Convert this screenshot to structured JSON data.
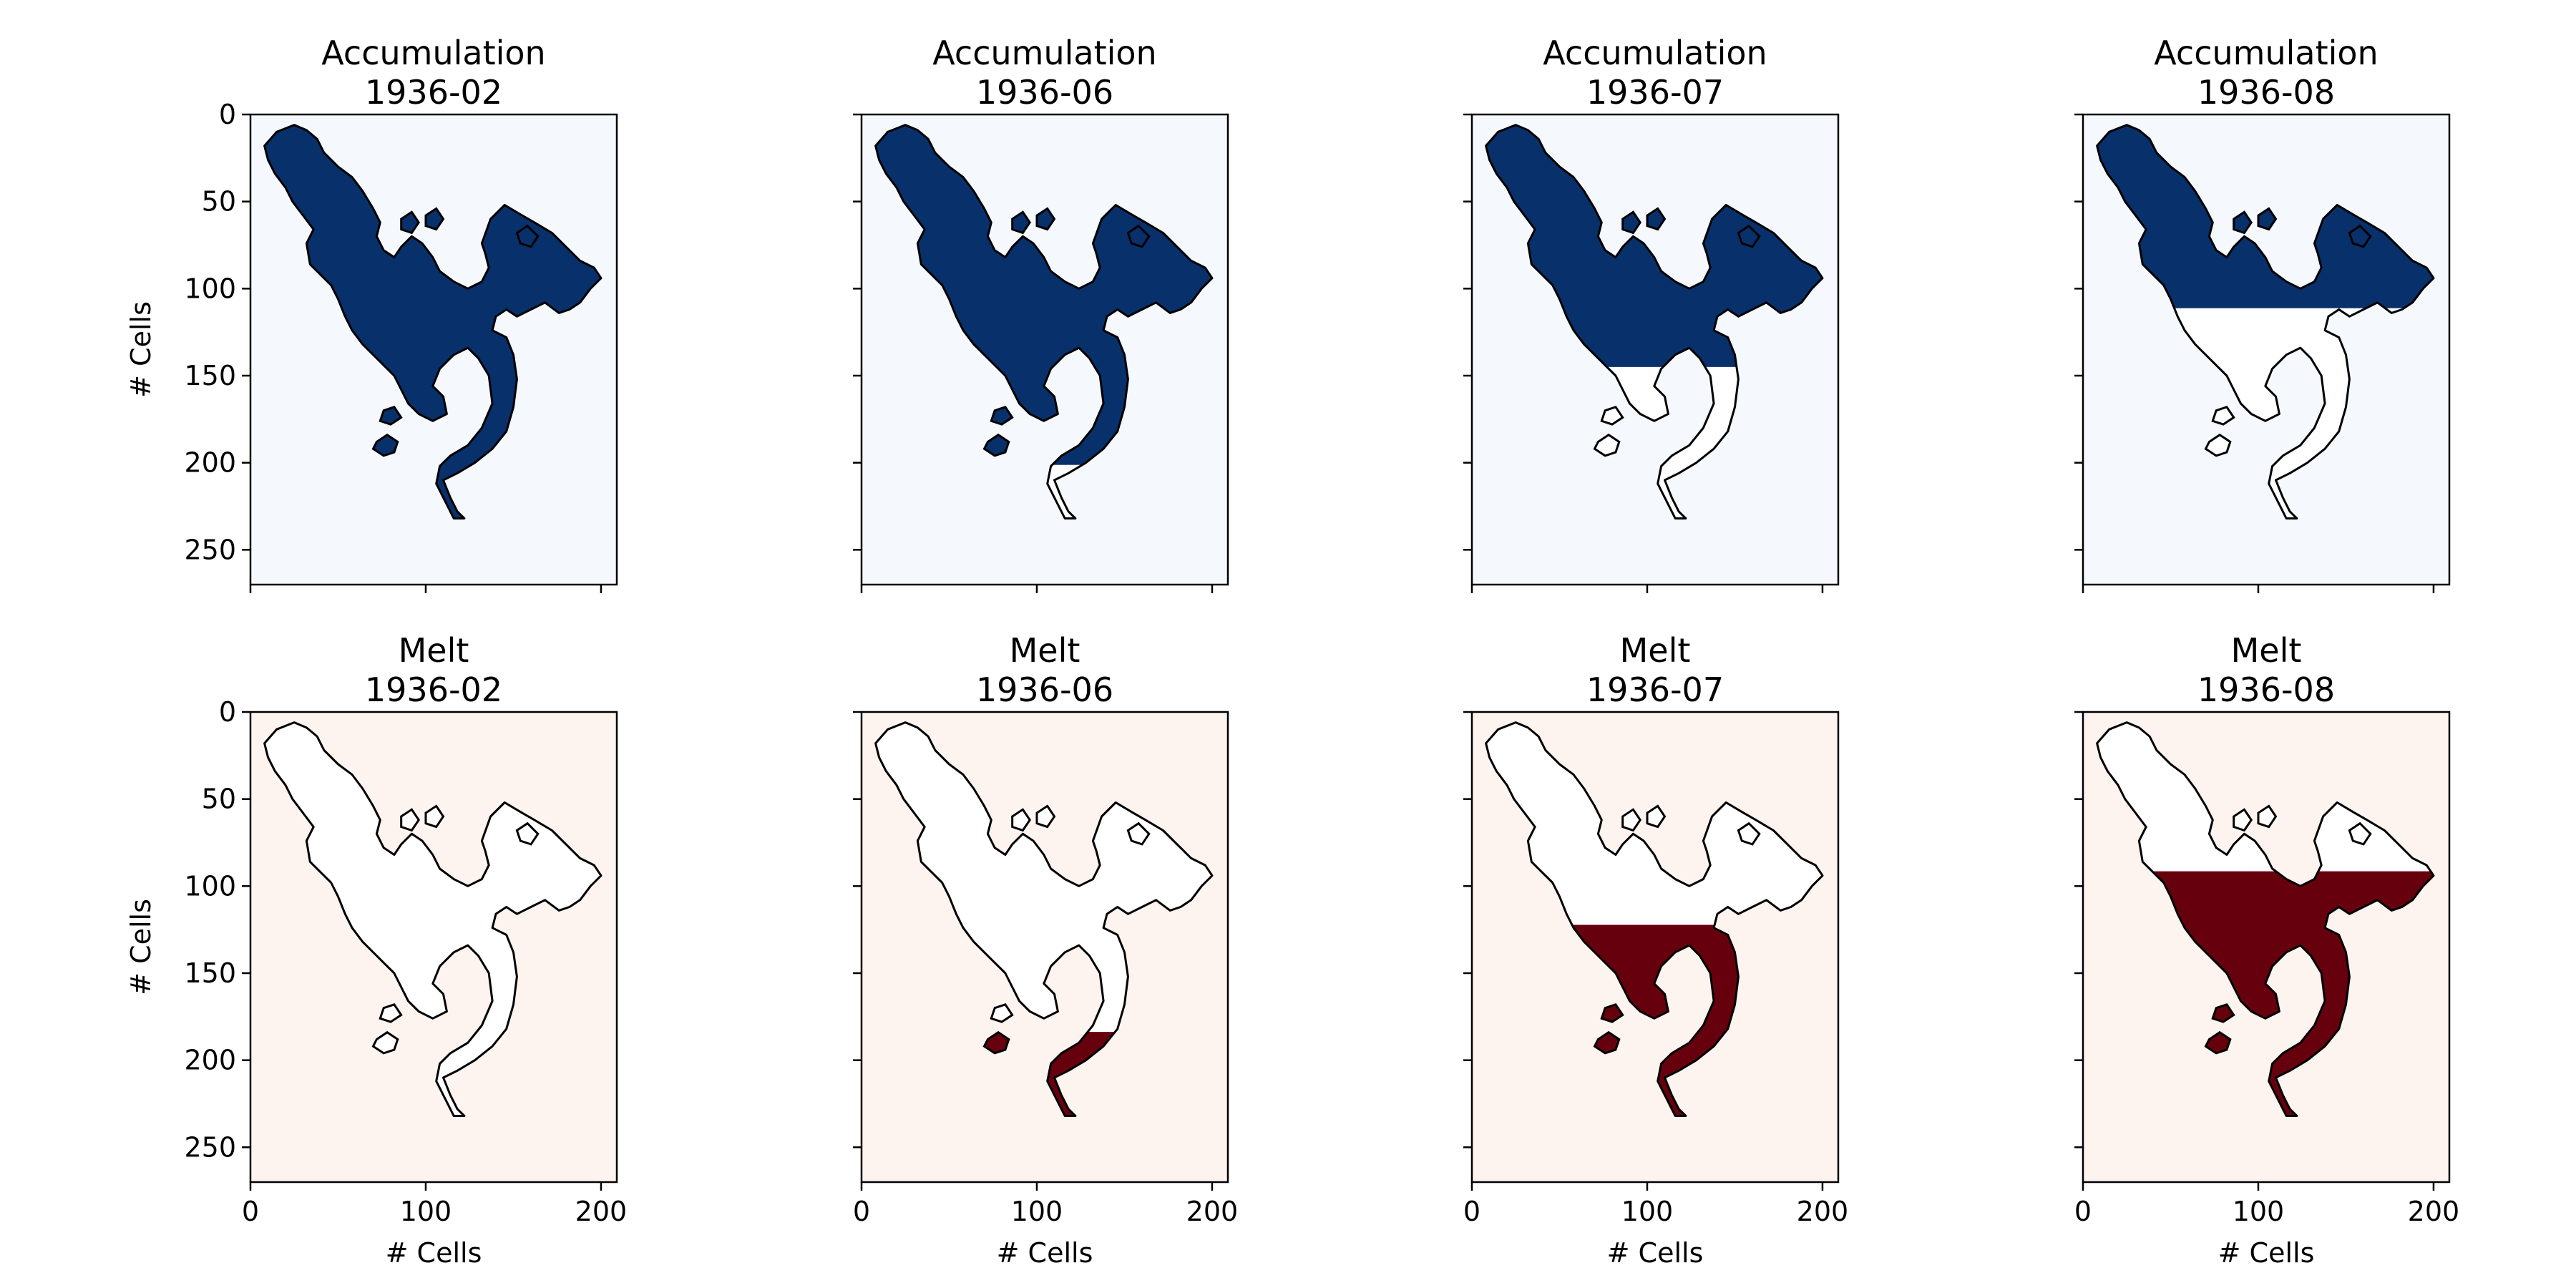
{
  "chart_data": {
    "type": "heatmap",
    "grid": false,
    "colors": {
      "accumulation": "#08306b",
      "accumulation_bg": "#f5f9fe",
      "melt": "#67000d",
      "melt_bg": "#fdf3ef",
      "outline": "#000000"
    },
    "panels": [
      {
        "title_line1": "Accumulation",
        "title_line2": "1936-02",
        "variable": "accumulation",
        "colormap": "Blues",
        "cover_fraction": 1.0,
        "shows_ylabel": true,
        "shows_xlabel": false
      },
      {
        "title_line1": "Accumulation",
        "title_line2": "1936-06",
        "variable": "accumulation",
        "colormap": "Blues",
        "cover_fraction": 0.85,
        "shows_ylabel": false,
        "shows_xlabel": false
      },
      {
        "title_line1": "Accumulation",
        "title_line2": "1936-07",
        "variable": "accumulation",
        "colormap": "Blues",
        "cover_fraction": 0.6,
        "shows_ylabel": false,
        "shows_xlabel": false
      },
      {
        "title_line1": "Accumulation",
        "title_line2": "1936-08",
        "variable": "accumulation",
        "colormap": "Blues",
        "cover_fraction": 0.45,
        "shows_ylabel": false,
        "shows_xlabel": false
      },
      {
        "title_line1": "Melt",
        "title_line2": "1936-02",
        "variable": "melt",
        "colormap": "Reds",
        "cover_fraction": 0.0,
        "shows_ylabel": true,
        "shows_xlabel": true
      },
      {
        "title_line1": "Melt",
        "title_line2": "1936-06",
        "variable": "melt",
        "colormap": "Reds",
        "cover_fraction": 0.25,
        "shows_ylabel": false,
        "shows_xlabel": true
      },
      {
        "title_line1": "Melt",
        "title_line2": "1936-07",
        "variable": "melt",
        "colormap": "Reds",
        "cover_fraction": 0.55,
        "shows_ylabel": false,
        "shows_xlabel": true
      },
      {
        "title_line1": "Melt",
        "title_line2": "1936-08",
        "variable": "melt",
        "colormap": "Reds",
        "cover_fraction": 0.7,
        "shows_ylabel": false,
        "shows_xlabel": true
      }
    ],
    "xlabel": "# Cells",
    "ylabel": "# Cells",
    "xlim": [
      0,
      209
    ],
    "ylim": [
      270,
      0
    ],
    "x_ticks": [
      0,
      100,
      200
    ],
    "y_ticks": [
      0,
      50,
      100,
      150,
      200,
      250
    ],
    "glacier_outline": [
      [
        8,
        18
      ],
      [
        15,
        10
      ],
      [
        25,
        6
      ],
      [
        32,
        9
      ],
      [
        38,
        14
      ],
      [
        42,
        22
      ],
      [
        50,
        30
      ],
      [
        58,
        36
      ],
      [
        64,
        44
      ],
      [
        70,
        54
      ],
      [
        74,
        62
      ],
      [
        72,
        70
      ],
      [
        76,
        78
      ],
      [
        82,
        82
      ],
      [
        86,
        76
      ],
      [
        92,
        70
      ],
      [
        98,
        74
      ],
      [
        104,
        82
      ],
      [
        108,
        90
      ],
      [
        116,
        96
      ],
      [
        124,
        100
      ],
      [
        132,
        96
      ],
      [
        136,
        88
      ],
      [
        134,
        80
      ],
      [
        132,
        74
      ],
      [
        137,
        60
      ],
      [
        145,
        52
      ],
      [
        155,
        58
      ],
      [
        162,
        62
      ],
      [
        172,
        68
      ],
      [
        180,
        76
      ],
      [
        188,
        84
      ],
      [
        196,
        88
      ],
      [
        200,
        94
      ],
      [
        194,
        100
      ],
      [
        188,
        108
      ],
      [
        182,
        112
      ],
      [
        176,
        114
      ],
      [
        168,
        108
      ],
      [
        160,
        112
      ],
      [
        152,
        116
      ],
      [
        146,
        112
      ],
      [
        140,
        116
      ],
      [
        138,
        124
      ],
      [
        146,
        128
      ],
      [
        150,
        138
      ],
      [
        152,
        152
      ],
      [
        150,
        168
      ],
      [
        146,
        182
      ],
      [
        138,
        192
      ],
      [
        128,
        200
      ],
      [
        118,
        206
      ],
      [
        110,
        210
      ],
      [
        114,
        220
      ],
      [
        118,
        228
      ],
      [
        122,
        232
      ],
      [
        116,
        232
      ],
      [
        112,
        224
      ],
      [
        106,
        212
      ],
      [
        108,
        202
      ],
      [
        114,
        196
      ],
      [
        124,
        190
      ],
      [
        132,
        180
      ],
      [
        138,
        166
      ],
      [
        136,
        150
      ],
      [
        130,
        140
      ],
      [
        124,
        134
      ],
      [
        116,
        138
      ],
      [
        108,
        146
      ],
      [
        104,
        156
      ],
      [
        110,
        162
      ],
      [
        112,
        172
      ],
      [
        104,
        176
      ],
      [
        96,
        172
      ],
      [
        90,
        166
      ],
      [
        86,
        158
      ],
      [
        82,
        150
      ],
      [
        76,
        144
      ],
      [
        70,
        138
      ],
      [
        64,
        132
      ],
      [
        58,
        124
      ],
      [
        54,
        116
      ],
      [
        50,
        106
      ],
      [
        46,
        98
      ],
      [
        40,
        92
      ],
      [
        34,
        86
      ],
      [
        32,
        74
      ],
      [
        36,
        66
      ],
      [
        30,
        58
      ],
      [
        24,
        50
      ],
      [
        20,
        42
      ],
      [
        14,
        34
      ],
      [
        10,
        26
      ]
    ],
    "glacier_islands": [
      [
        [
          72,
          188
        ],
        [
          78,
          184
        ],
        [
          84,
          188
        ],
        [
          82,
          194
        ],
        [
          76,
          196
        ],
        [
          70,
          192
        ]
      ],
      [
        [
          76,
          170
        ],
        [
          82,
          168
        ],
        [
          86,
          174
        ],
        [
          80,
          178
        ],
        [
          74,
          176
        ]
      ],
      [
        [
          86,
          60
        ],
        [
          92,
          56
        ],
        [
          96,
          62
        ],
        [
          92,
          68
        ],
        [
          86,
          66
        ]
      ],
      [
        [
          100,
          58
        ],
        [
          106,
          54
        ],
        [
          110,
          60
        ],
        [
          106,
          66
        ],
        [
          100,
          64
        ]
      ],
      [
        [
          152,
          68
        ],
        [
          158,
          64
        ],
        [
          164,
          70
        ],
        [
          160,
          76
        ],
        [
          154,
          74
        ]
      ]
    ]
  }
}
